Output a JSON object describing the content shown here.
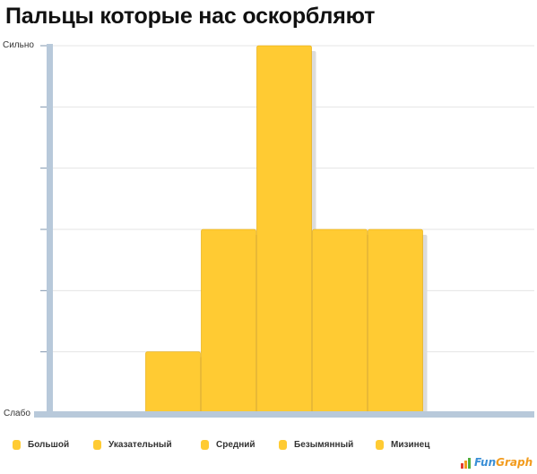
{
  "title": "Пальцы которые нас оскорбляют",
  "colors": {
    "bar": "#ffcb33",
    "bar_border": "#e6a800",
    "axis": "#b8c9da",
    "grid": "#e4e4e4",
    "shadow": "#dcdcdc"
  },
  "brand": {
    "part1": "Fun",
    "part2": "Graph"
  },
  "chart_data": {
    "type": "bar",
    "title": "Пальцы которые нас оскорбляют",
    "categories": [
      "",
      "",
      "Большой",
      "Указательный",
      "Средний",
      "Безымянный",
      "Мизинец",
      "",
      ""
    ],
    "values": [
      0,
      0,
      1,
      3,
      6,
      3,
      3,
      0,
      0
    ],
    "ylim": [
      0,
      6
    ],
    "y_tick_labels": {
      "min": "Слабо",
      "max": "Сильно"
    },
    "grid": true,
    "legend": {
      "position": "bottom",
      "entries": [
        "Большой",
        "Указательный",
        "Средний",
        "Безымянный",
        "Мизинец"
      ]
    }
  }
}
